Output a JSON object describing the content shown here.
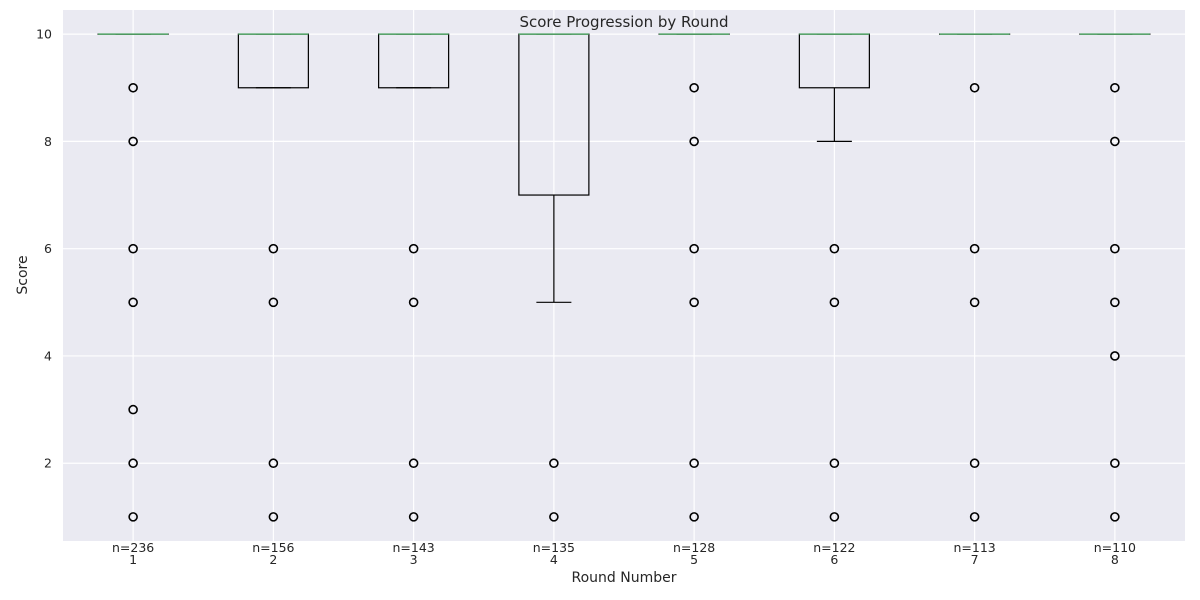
{
  "chart_data": {
    "type": "box",
    "title": "Score Progression by Round",
    "xlabel": "Round Number",
    "ylabel": "Score",
    "ylim": [
      0.55,
      10.45
    ],
    "yticks": [
      2,
      4,
      6,
      8,
      10
    ],
    "grid": true,
    "colors": {
      "background": "#eaeaf2",
      "grid": "#ffffff",
      "box": "#000000",
      "median": "#55a868",
      "text": "#262626"
    },
    "categories": [
      "1",
      "2",
      "3",
      "4",
      "5",
      "6",
      "7",
      "8"
    ],
    "counts": [
      "n=236",
      "n=156",
      "n=143",
      "n=135",
      "n=128",
      "n=122",
      "n=113",
      "n=110"
    ],
    "boxes": [
      {
        "q1": 10,
        "median": 10,
        "q3": 10,
        "whisker_low": 10,
        "whisker_high": 10,
        "outliers": [
          9,
          8,
          6,
          5,
          3,
          2,
          1
        ]
      },
      {
        "q1": 9,
        "median": 10,
        "q3": 10,
        "whisker_low": 9,
        "whisker_high": 10,
        "outliers": [
          6,
          5,
          2,
          1
        ]
      },
      {
        "q1": 9,
        "median": 10,
        "q3": 10,
        "whisker_low": 9,
        "whisker_high": 10,
        "outliers": [
          6,
          5,
          2,
          1
        ]
      },
      {
        "q1": 7,
        "median": 10,
        "q3": 10,
        "whisker_low": 5,
        "whisker_high": 10,
        "outliers": [
          2,
          1
        ]
      },
      {
        "q1": 10,
        "median": 10,
        "q3": 10,
        "whisker_low": 10,
        "whisker_high": 10,
        "outliers": [
          9,
          8,
          6,
          5,
          2,
          1
        ]
      },
      {
        "q1": 9,
        "median": 10,
        "q3": 10,
        "whisker_low": 8,
        "whisker_high": 10,
        "outliers": [
          6,
          5,
          2,
          1
        ]
      },
      {
        "q1": 10,
        "median": 10,
        "q3": 10,
        "whisker_low": 10,
        "whisker_high": 10,
        "outliers": [
          9,
          6,
          5,
          2,
          1
        ]
      },
      {
        "q1": 10,
        "median": 10,
        "q3": 10,
        "whisker_low": 10,
        "whisker_high": 10,
        "outliers": [
          9,
          8,
          6,
          5,
          4,
          2,
          1
        ]
      }
    ]
  }
}
